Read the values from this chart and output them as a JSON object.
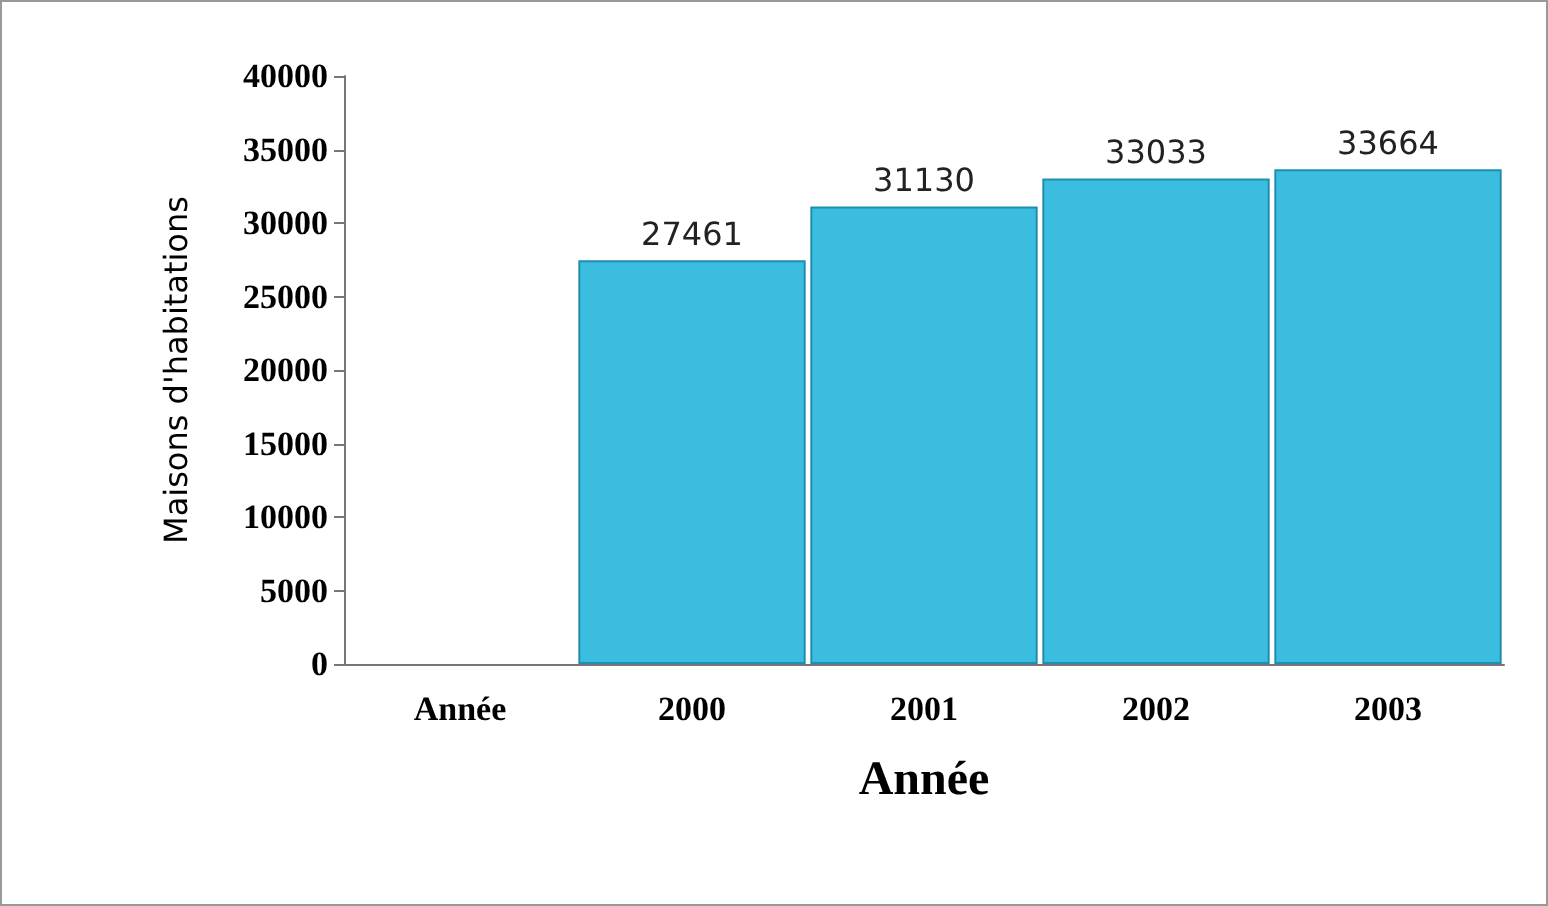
{
  "chart_data": {
    "type": "bar",
    "xlabel": "Année",
    "ylabel": "Maisons d'habitations",
    "categories": [
      "Année",
      "2000",
      "2001",
      "2002",
      "2003"
    ],
    "values": [
      null,
      27461,
      31130,
      33033,
      33664
    ],
    "color": "#3bbde0",
    "ylim": [
      0,
      40000
    ],
    "yticks": [
      0,
      5000,
      10000,
      15000,
      20000,
      25000,
      30000,
      35000,
      40000
    ],
    "data_labels": true,
    "grid": false
  }
}
